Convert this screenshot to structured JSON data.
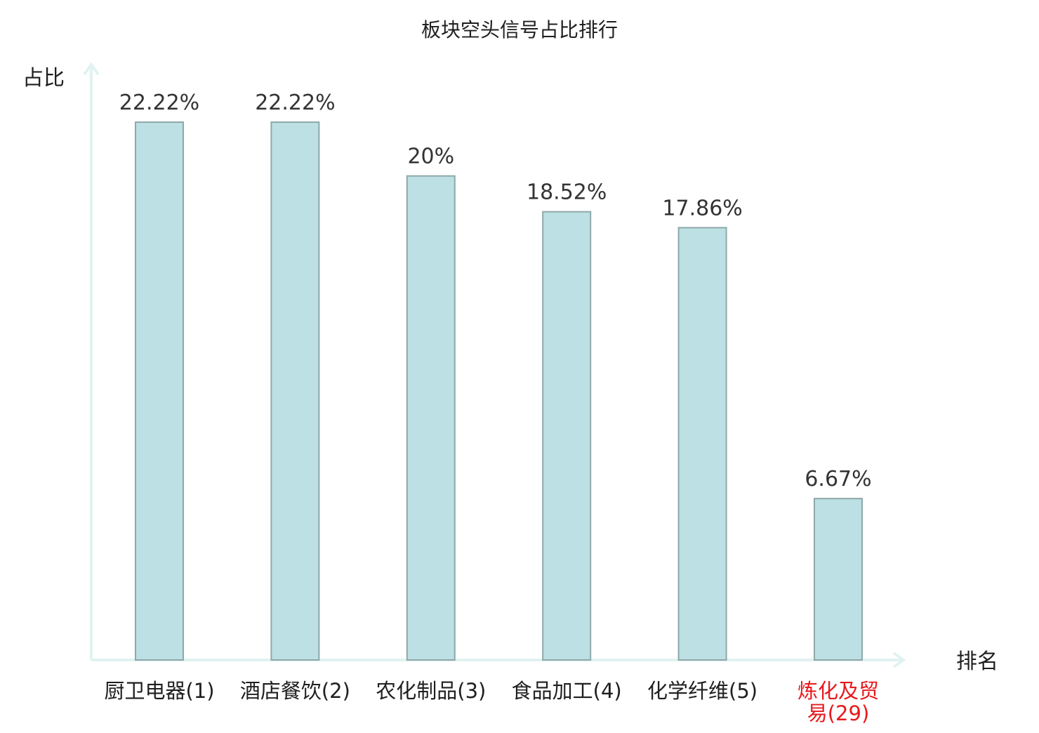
{
  "chart_data": {
    "type": "bar",
    "title": "板块空头信号占比排行",
    "xlabel": "排名",
    "ylabel": "占比",
    "categories": [
      "厨卫电器(1)",
      "酒店餐饮(2)",
      "农化制品(3)",
      "食品加工(4)",
      "化学纤维(5)",
      "炼化及贸易(29)"
    ],
    "category_lines": [
      [
        "厨卫电器(1)"
      ],
      [
        "酒店餐饮(2)"
      ],
      [
        "农化制品(3)"
      ],
      [
        "食品加工(4)"
      ],
      [
        "化学纤维(5)"
      ],
      [
        "炼化及贸",
        "易(29)"
      ]
    ],
    "values": [
      22.22,
      22.22,
      20,
      18.52,
      17.86,
      6.67
    ],
    "value_labels": [
      "22.22%",
      "22.22%",
      "20%",
      "18.52%",
      "17.86%",
      "6.67%"
    ],
    "highlight_index": 5,
    "ylim": [
      0,
      24.6
    ],
    "grid": false,
    "legend": "none",
    "colors": {
      "bar_fill": "#bce0e3",
      "bar_stroke": "#8fa8aa",
      "axis": "#e1f2f0",
      "highlight_text": "#e8181c"
    }
  }
}
